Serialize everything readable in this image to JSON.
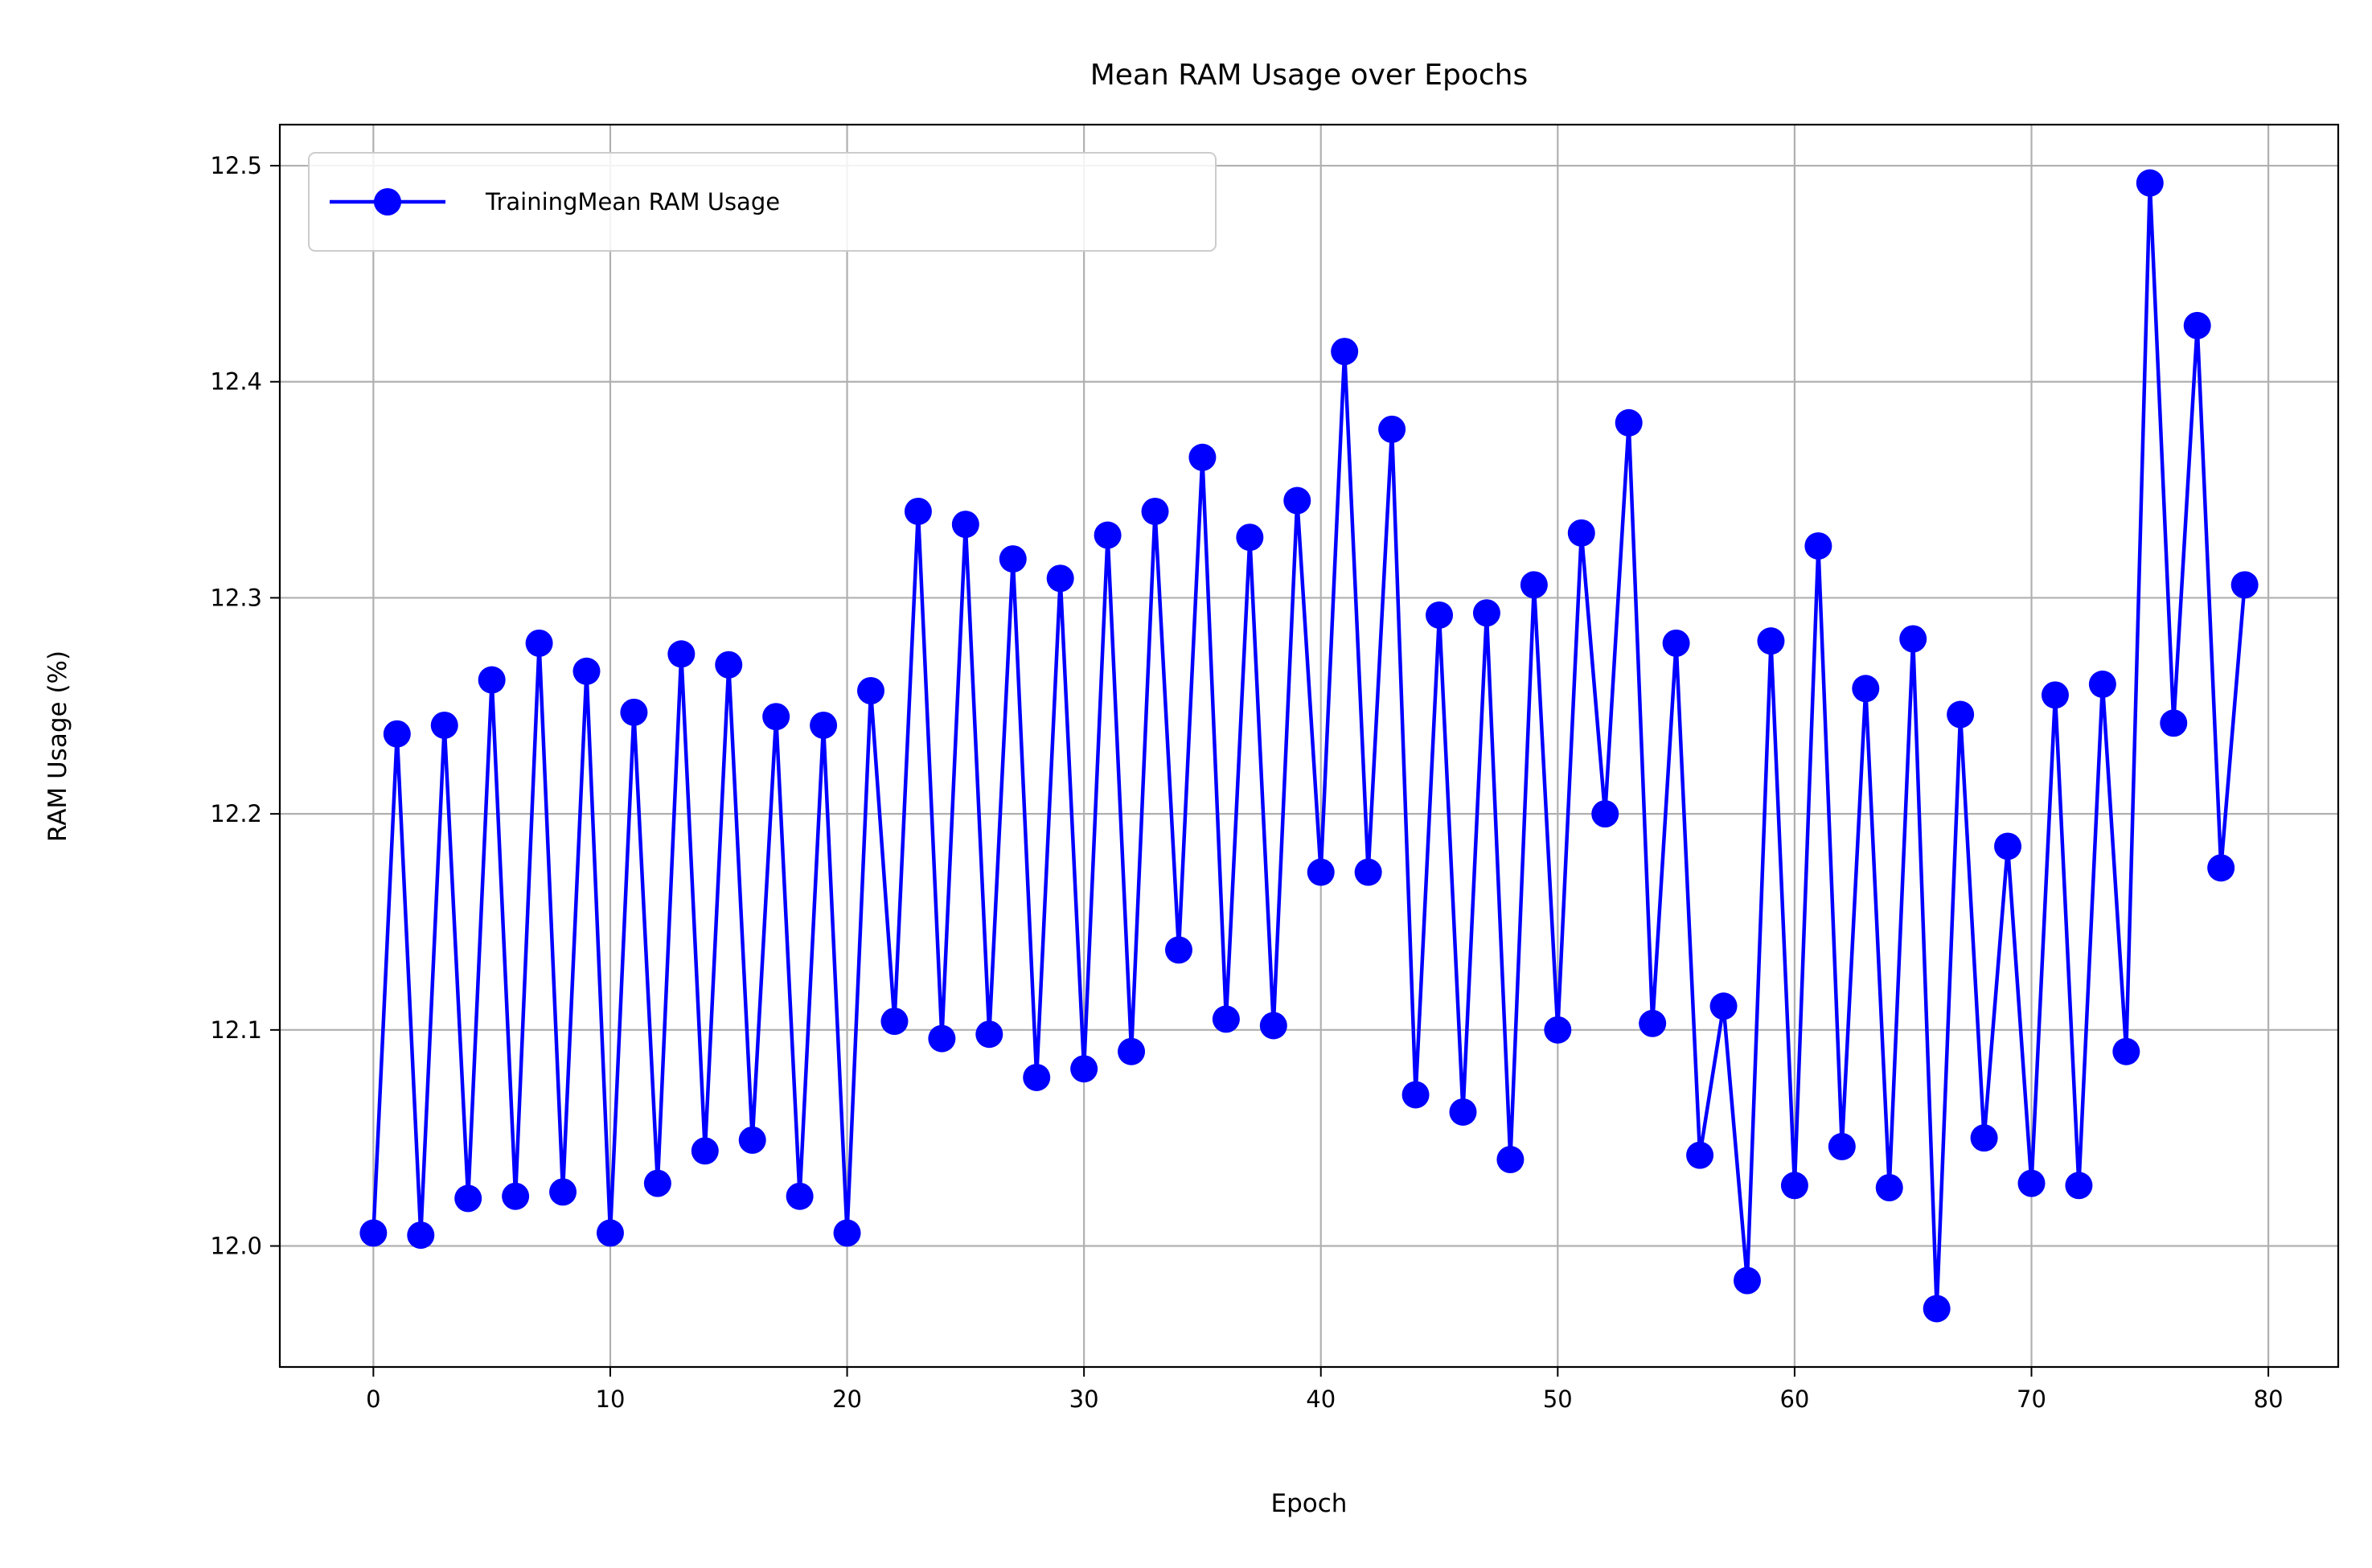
{
  "chart_data": {
    "type": "line",
    "title": "Mean RAM Usage over Epochs",
    "xlabel": "Epoch",
    "ylabel": "RAM Usage (%)",
    "xlim": [
      -3.95,
      82.95
    ],
    "ylim": [
      11.944,
      12.519
    ],
    "xticks": [
      0,
      10,
      20,
      30,
      40,
      50,
      60,
      70,
      80
    ],
    "yticks": [
      12.0,
      12.1,
      12.2,
      12.3,
      12.4,
      12.5
    ],
    "ytick_labels": [
      "12.0",
      "12.1",
      "12.2",
      "12.3",
      "12.4",
      "12.5"
    ],
    "grid": true,
    "legend_position": "upper-left",
    "series": [
      {
        "name": "TrainingMean RAM Usage",
        "color": "#0000ff",
        "marker": "circle",
        "x": [
          0,
          1,
          2,
          3,
          4,
          5,
          6,
          7,
          8,
          9,
          10,
          11,
          12,
          13,
          14,
          15,
          16,
          17,
          18,
          19,
          20,
          21,
          22,
          23,
          24,
          25,
          26,
          27,
          28,
          29,
          30,
          31,
          32,
          33,
          34,
          35,
          36,
          37,
          38,
          39,
          40,
          41,
          42,
          43,
          44,
          45,
          46,
          47,
          48,
          49,
          50,
          51,
          52,
          53,
          54,
          55,
          56,
          57,
          58,
          59,
          60,
          61,
          62,
          63,
          64,
          65,
          66,
          67,
          68,
          69,
          70,
          71,
          72,
          73,
          74,
          75,
          76,
          77,
          78,
          79
        ],
        "values": [
          12.006,
          12.237,
          12.005,
          12.241,
          12.022,
          12.262,
          12.023,
          12.279,
          12.025,
          12.266,
          12.006,
          12.247,
          12.029,
          12.274,
          12.044,
          12.269,
          12.049,
          12.245,
          12.023,
          12.241,
          12.006,
          12.257,
          12.104,
          12.34,
          12.096,
          12.334,
          12.098,
          12.318,
          12.078,
          12.309,
          12.082,
          12.329,
          12.09,
          12.34,
          12.137,
          12.365,
          12.105,
          12.328,
          12.102,
          12.345,
          12.173,
          12.414,
          12.173,
          12.378,
          12.07,
          12.292,
          12.062,
          12.293,
          12.04,
          12.306,
          12.1,
          12.33,
          12.2,
          12.381,
          12.103,
          12.279,
          12.042,
          12.111,
          11.984,
          12.28,
          12.028,
          12.324,
          12.046,
          12.258,
          12.027,
          12.281,
          11.971,
          12.246,
          12.05,
          12.185,
          12.029,
          12.255,
          12.028,
          12.26,
          12.09,
          12.492,
          12.242,
          12.426,
          12.175,
          12.306
        ]
      }
    ]
  }
}
